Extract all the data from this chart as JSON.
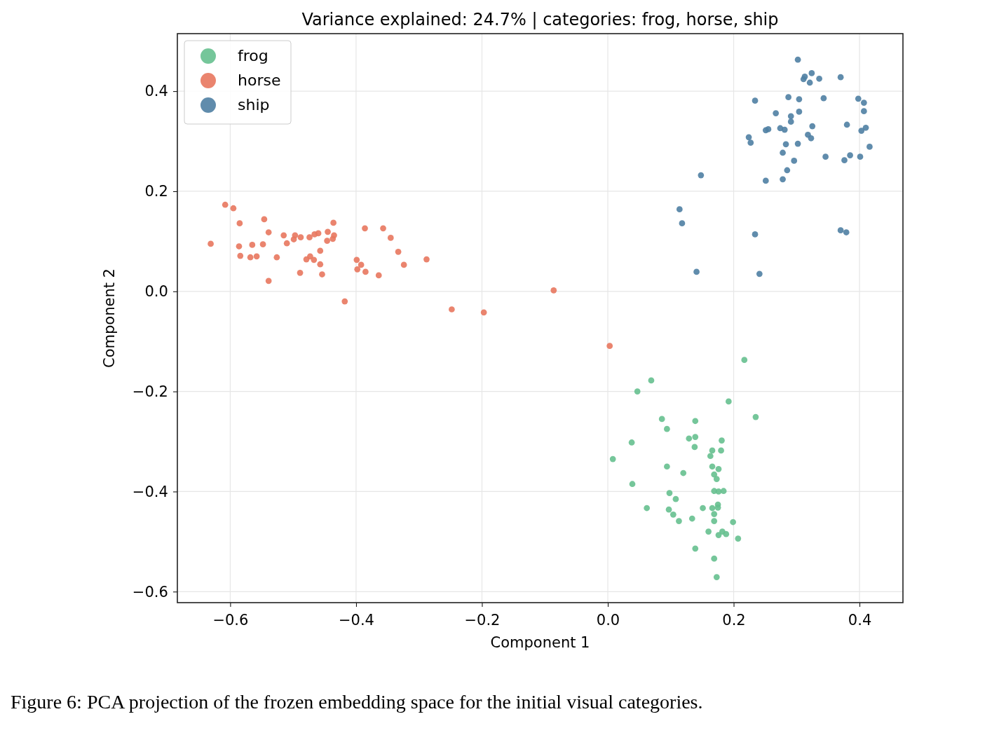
{
  "chart_data": {
    "type": "scatter",
    "title": "Variance explained: 24.7%  |  categories: frog, horse, ship",
    "xlabel": "Component 1",
    "ylabel": "Component 2",
    "annotations": [
      "Figure 6: PCA projection of the frozen embedding space for the initial visual categories."
    ],
    "xlim": [
      -0.684,
      0.469
    ],
    "ylim": [
      -0.622,
      0.515
    ],
    "xticks": [
      {
        "value": -0.6,
        "label": "−0.6"
      },
      {
        "value": -0.4,
        "label": "−0.4"
      },
      {
        "value": -0.2,
        "label": "−0.2"
      },
      {
        "value": 0,
        "label": "0.0"
      },
      {
        "value": 0.2,
        "label": "0.2"
      },
      {
        "value": 0.4,
        "label": "0.4"
      }
    ],
    "yticks": [
      {
        "value": -0.6,
        "label": "−0.6"
      },
      {
        "value": -0.4,
        "label": "−0.4"
      },
      {
        "value": -0.2,
        "label": "−0.2"
      },
      {
        "value": 0,
        "label": "0.0"
      },
      {
        "value": 0.2,
        "label": "0.2"
      },
      {
        "value": 0.4,
        "label": "0.4"
      }
    ],
    "grid": true,
    "legend": "top left",
    "marker": "circle",
    "series": [
      {
        "name": "frog",
        "color": "#66c08f",
        "x": [
          0.217,
          0.069,
          0.047,
          0.192,
          0.235,
          0.086,
          0.139,
          0.094,
          0.129,
          0.139,
          0.181,
          0.038,
          0.138,
          0.166,
          0.18,
          0.163,
          0.008,
          0.094,
          0.166,
          0.176,
          0.12,
          0.169,
          0.173,
          0.039,
          0.169,
          0.176,
          0.184,
          0.098,
          0.108,
          0.175,
          0.062,
          0.097,
          0.151,
          0.166,
          0.175,
          0.104,
          0.169,
          0.169,
          0.113,
          0.134,
          0.199,
          0.16,
          0.182,
          0.176,
          0.188,
          0.207,
          0.139,
          0.169,
          0.173
        ],
        "values": [
          -0.137,
          -0.178,
          -0.2,
          -0.22,
          -0.251,
          -0.255,
          -0.259,
          -0.275,
          -0.294,
          -0.291,
          -0.298,
          -0.302,
          -0.311,
          -0.318,
          -0.318,
          -0.329,
          -0.335,
          -0.35,
          -0.35,
          -0.355,
          -0.363,
          -0.366,
          -0.375,
          -0.385,
          -0.399,
          -0.4,
          -0.399,
          -0.403,
          -0.415,
          -0.426,
          -0.433,
          -0.436,
          -0.433,
          -0.433,
          -0.432,
          -0.446,
          -0.445,
          -0.459,
          -0.459,
          -0.454,
          -0.461,
          -0.48,
          -0.48,
          -0.487,
          -0.485,
          -0.494,
          -0.514,
          -0.534,
          -0.571
        ]
      },
      {
        "name": "horse",
        "color": "#e8775e",
        "x": [
          -0.631,
          -0.608,
          -0.595,
          -0.585,
          -0.586,
          -0.584,
          -0.568,
          -0.565,
          -0.558,
          -0.546,
          -0.548,
          -0.539,
          -0.539,
          -0.526,
          -0.515,
          -0.51,
          -0.499,
          -0.497,
          -0.488,
          -0.489,
          -0.479,
          -0.474,
          -0.473,
          -0.467,
          -0.466,
          -0.46,
          -0.457,
          -0.457,
          -0.454,
          -0.445,
          -0.446,
          -0.437,
          -0.436,
          -0.435,
          -0.418,
          -0.399,
          -0.398,
          -0.392,
          -0.386,
          -0.385,
          -0.364,
          -0.357,
          -0.345,
          -0.333,
          -0.324,
          -0.288,
          -0.248,
          -0.197,
          -0.086,
          0.003
        ],
        "values": [
          0.095,
          0.173,
          0.166,
          0.136,
          0.09,
          0.071,
          0.068,
          0.093,
          0.07,
          0.144,
          0.094,
          0.118,
          0.021,
          0.068,
          0.112,
          0.096,
          0.104,
          0.112,
          0.108,
          0.037,
          0.064,
          0.108,
          0.07,
          0.063,
          0.114,
          0.116,
          0.081,
          0.054,
          0.034,
          0.119,
          0.101,
          0.105,
          0.137,
          0.112,
          -0.02,
          0.063,
          0.044,
          0.053,
          0.126,
          0.039,
          0.032,
          0.126,
          0.107,
          0.079,
          0.053,
          0.064,
          -0.036,
          -0.042,
          0.002,
          -0.109
        ]
      },
      {
        "name": "ship",
        "color": "#4f7fa3",
        "x": [
          0.302,
          0.313,
          0.311,
          0.324,
          0.321,
          0.336,
          0.37,
          0.234,
          0.287,
          0.304,
          0.343,
          0.398,
          0.407,
          0.407,
          0.267,
          0.291,
          0.304,
          0.291,
          0.325,
          0.38,
          0.41,
          0.403,
          0.251,
          0.255,
          0.274,
          0.281,
          0.318,
          0.323,
          0.224,
          0.227,
          0.283,
          0.302,
          0.416,
          0.278,
          0.346,
          0.385,
          0.401,
          0.376,
          0.296,
          0.285,
          0.251,
          0.278,
          0.148,
          0.114,
          0.118,
          0.234,
          0.37,
          0.379,
          0.141,
          0.241
        ],
        "values": [
          0.463,
          0.429,
          0.424,
          0.436,
          0.417,
          0.425,
          0.428,
          0.381,
          0.388,
          0.384,
          0.386,
          0.385,
          0.377,
          0.36,
          0.356,
          0.35,
          0.359,
          0.339,
          0.33,
          0.333,
          0.327,
          0.321,
          0.322,
          0.324,
          0.326,
          0.323,
          0.313,
          0.306,
          0.308,
          0.297,
          0.294,
          0.295,
          0.289,
          0.277,
          0.269,
          0.272,
          0.269,
          0.262,
          0.261,
          0.242,
          0.221,
          0.224,
          0.232,
          0.164,
          0.136,
          0.114,
          0.122,
          0.118,
          0.039,
          0.035
        ]
      }
    ]
  }
}
